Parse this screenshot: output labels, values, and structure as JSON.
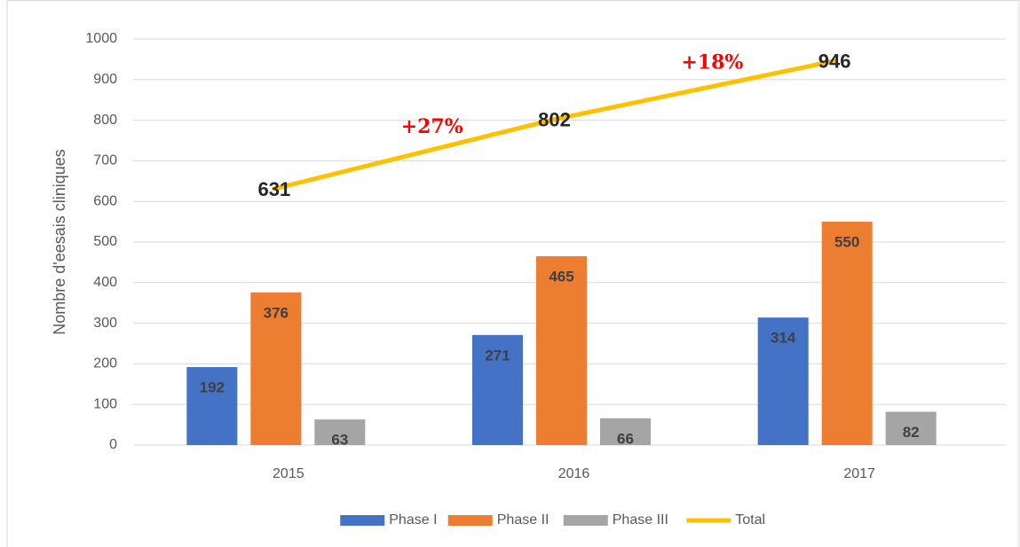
{
  "chart_data": {
    "type": "bar",
    "y_label": "Nombre d'eesais cliniques",
    "categories": [
      "2015",
      "2016",
      "2017"
    ],
    "series": [
      {
        "name": "Phase I",
        "color": "#4472c4",
        "values": [
          192,
          271,
          314
        ]
      },
      {
        "name": "Phase II",
        "color": "#ed7d31",
        "values": [
          376,
          465,
          550
        ]
      },
      {
        "name": "Phase III",
        "color": "#a5a5a5",
        "values": [
          63,
          66,
          82
        ]
      },
      {
        "name": "Total",
        "color": "#ffc000",
        "type": "line",
        "values": [
          631,
          802,
          946
        ]
      }
    ],
    "annotations": [
      "+27%",
      "+18%"
    ],
    "ylim": [
      0,
      1000
    ],
    "yticks": [
      0,
      100,
      200,
      300,
      400,
      500,
      600,
      700,
      800,
      900,
      1000
    ],
    "grid": true,
    "legend": "bottom"
  }
}
